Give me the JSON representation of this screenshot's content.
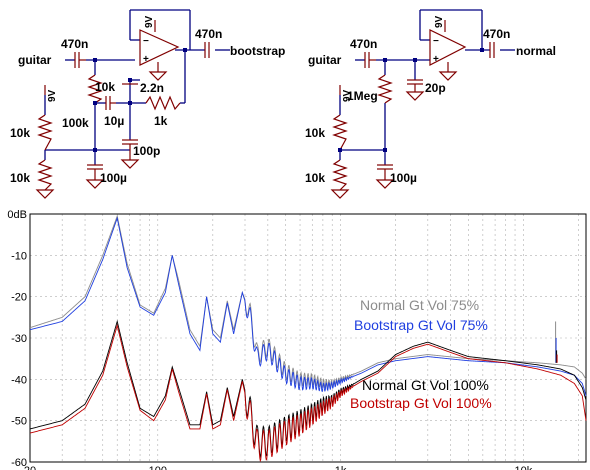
{
  "schematics": [
    {
      "input": "guitar",
      "output": "bootstrap",
      "in_cap": "470n",
      "out_cap": "470n",
      "supply": "9V",
      "bias_top": "10k",
      "bias_bottom": "10k",
      "bias_cap": "100µ",
      "bootstrap_resistor": "100k",
      "bootstrap_cap": "10µ",
      "fb_cap": "2.2n",
      "fb_r_gnd": "10k",
      "fb_r": "1k",
      "gnd_cap": "100p"
    },
    {
      "input": "guitar",
      "output": "normal",
      "in_cap": "470n",
      "out_cap": "470n",
      "supply": "9V",
      "bias_top": "10k",
      "bias_bottom": "10k",
      "bias_cap": "100µ",
      "input_resistor": "1Meg",
      "in_shunt_cap": "20p"
    }
  ],
  "chart_data": {
    "type": "line",
    "x_scale": "log",
    "xlim": [
      20,
      22000
    ],
    "ylim": [
      -60,
      0
    ],
    "x_ticks": [
      "20",
      "100",
      "1k",
      "10k"
    ],
    "y_ticks": [
      "0dB",
      "-10",
      "-20",
      "-30",
      "-40",
      "-50",
      "-60"
    ],
    "grid": true,
    "series": [
      {
        "name": "Normal Gt Vol 75%",
        "color": "#8c8c8c",
        "points": [
          [
            20,
            -27.5
          ],
          [
            30,
            -25
          ],
          [
            40,
            -20
          ],
          [
            50,
            -10
          ],
          [
            60,
            -0.5
          ],
          [
            68,
            -12
          ],
          [
            80,
            -22
          ],
          [
            95,
            -24
          ],
          [
            110,
            -18
          ],
          [
            120,
            -10
          ],
          [
            130,
            -16
          ],
          [
            150,
            -28
          ],
          [
            170,
            -32
          ],
          [
            185,
            -20
          ],
          [
            200,
            -28
          ],
          [
            220,
            -30
          ],
          [
            240,
            -21
          ],
          [
            260,
            -28
          ],
          [
            290,
            -19
          ],
          [
            320,
            -24
          ],
          [
            350,
            -34
          ],
          [
            400,
            -32
          ],
          [
            500,
            -38
          ],
          [
            600,
            -40
          ],
          [
            700,
            -40
          ],
          [
            800,
            -41
          ],
          [
            900,
            -41
          ],
          [
            1000,
            -40
          ],
          [
            1300,
            -38
          ],
          [
            1600,
            -36
          ],
          [
            2000,
            -35
          ],
          [
            3000,
            -34
          ],
          [
            5000,
            -35
          ],
          [
            8000,
            -35.5
          ],
          [
            12000,
            -36
          ],
          [
            16000,
            -36.5
          ],
          [
            19000,
            -37
          ],
          [
            21000,
            -38.5
          ],
          [
            22000,
            -40
          ]
        ]
      },
      {
        "name": "Bootstrap Gt Vol 75%",
        "color": "#1f3fe0",
        "points": [
          [
            20,
            -28
          ],
          [
            30,
            -26
          ],
          [
            40,
            -21
          ],
          [
            50,
            -11
          ],
          [
            60,
            -1
          ],
          [
            68,
            -13
          ],
          [
            80,
            -22.5
          ],
          [
            95,
            -24.5
          ],
          [
            110,
            -19
          ],
          [
            120,
            -10
          ],
          [
            130,
            -17
          ],
          [
            150,
            -29
          ],
          [
            170,
            -33
          ],
          [
            185,
            -20
          ],
          [
            200,
            -29
          ],
          [
            220,
            -31
          ],
          [
            240,
            -21.5
          ],
          [
            260,
            -29
          ],
          [
            290,
            -19
          ],
          [
            320,
            -25
          ],
          [
            350,
            -35
          ],
          [
            400,
            -33
          ],
          [
            500,
            -39
          ],
          [
            600,
            -41
          ],
          [
            700,
            -41
          ],
          [
            800,
            -42
          ],
          [
            900,
            -41.5
          ],
          [
            1000,
            -40.5
          ],
          [
            1300,
            -38.5
          ],
          [
            1600,
            -36.5
          ],
          [
            2000,
            -35.5
          ],
          [
            3000,
            -34.5
          ],
          [
            5000,
            -35.5
          ],
          [
            8000,
            -36
          ],
          [
            12000,
            -37
          ],
          [
            16000,
            -38
          ],
          [
            19000,
            -39
          ],
          [
            21000,
            -41
          ],
          [
            22000,
            -44
          ]
        ]
      },
      {
        "name": "Normal Gt Vol 100%",
        "color": "#000000",
        "points": [
          [
            20,
            -52
          ],
          [
            30,
            -50
          ],
          [
            40,
            -46
          ],
          [
            50,
            -38
          ],
          [
            60,
            -26
          ],
          [
            68,
            -36
          ],
          [
            80,
            -47
          ],
          [
            95,
            -49
          ],
          [
            110,
            -44
          ],
          [
            120,
            -37
          ],
          [
            130,
            -42
          ],
          [
            150,
            -51
          ],
          [
            170,
            -51
          ],
          [
            185,
            -43
          ],
          [
            200,
            -51
          ],
          [
            220,
            -50
          ],
          [
            240,
            -42
          ],
          [
            260,
            -49
          ],
          [
            290,
            -40
          ],
          [
            320,
            -48
          ],
          [
            350,
            -55
          ],
          [
            400,
            -55
          ],
          [
            500,
            -52
          ],
          [
            600,
            -50
          ],
          [
            700,
            -48
          ],
          [
            800,
            -46
          ],
          [
            900,
            -45
          ],
          [
            1000,
            -43
          ],
          [
            1300,
            -40
          ],
          [
            1600,
            -38
          ],
          [
            2000,
            -34
          ],
          [
            2500,
            -32
          ],
          [
            3000,
            -31
          ],
          [
            4000,
            -33
          ],
          [
            5000,
            -34.5
          ],
          [
            8000,
            -35.5
          ],
          [
            12000,
            -36.5
          ],
          [
            16000,
            -37.5
          ],
          [
            19000,
            -39
          ],
          [
            21000,
            -42
          ],
          [
            22000,
            -45
          ]
        ]
      },
      {
        "name": "Bootstrap Gt Vol 100%",
        "color": "#c00000",
        "points": [
          [
            20,
            -53
          ],
          [
            30,
            -51
          ],
          [
            40,
            -47
          ],
          [
            50,
            -39
          ],
          [
            60,
            -27
          ],
          [
            68,
            -37
          ],
          [
            80,
            -47.5
          ],
          [
            95,
            -50
          ],
          [
            110,
            -45
          ],
          [
            120,
            -37.5
          ],
          [
            130,
            -43
          ],
          [
            150,
            -52
          ],
          [
            170,
            -52
          ],
          [
            185,
            -43.5
          ],
          [
            200,
            -52
          ],
          [
            220,
            -51
          ],
          [
            240,
            -42.5
          ],
          [
            260,
            -50
          ],
          [
            290,
            -40.5
          ],
          [
            320,
            -49
          ],
          [
            350,
            -56
          ],
          [
            400,
            -56
          ],
          [
            500,
            -53
          ],
          [
            600,
            -51
          ],
          [
            700,
            -49
          ],
          [
            800,
            -47
          ],
          [
            900,
            -45.5
          ],
          [
            1000,
            -43.5
          ],
          [
            1300,
            -40.5
          ],
          [
            1600,
            -38.5
          ],
          [
            2000,
            -34.5
          ],
          [
            2500,
            -32.5
          ],
          [
            3000,
            -31.5
          ],
          [
            4000,
            -33.5
          ],
          [
            5000,
            -35
          ],
          [
            8000,
            -36
          ],
          [
            12000,
            -37.5
          ],
          [
            16000,
            -39
          ],
          [
            19000,
            -41
          ],
          [
            21000,
            -44
          ],
          [
            22000,
            -50
          ]
        ]
      }
    ],
    "spike": {
      "x": 15000,
      "top": [
        -26,
        -30,
        -33,
        -34
      ]
    },
    "legend_placement": "right, inside plot"
  }
}
